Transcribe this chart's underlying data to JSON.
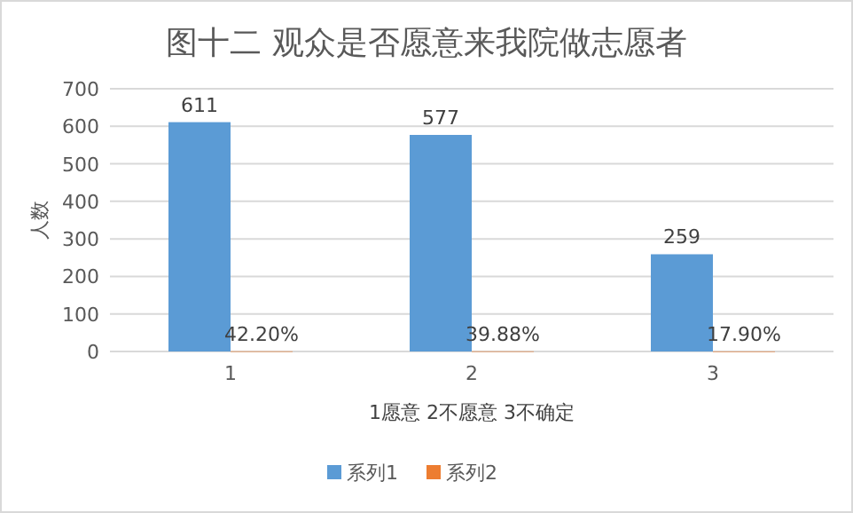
{
  "chart_data": {
    "type": "bar",
    "title": "图十二  观众是否愿意来我院做志愿者",
    "xlabel": "1愿意 2不愿意 3不确定",
    "ylabel": "人数",
    "categories": [
      "1",
      "2",
      "3"
    ],
    "series": [
      {
        "name": "系列1",
        "color": "#5b9bd5",
        "values": [
          611,
          577,
          259
        ],
        "value_labels": [
          "611",
          "577",
          "259"
        ]
      },
      {
        "name": "系列2",
        "color": "#ed7d31",
        "values": [
          0.422,
          0.3988,
          0.179
        ],
        "value_labels": [
          "42.20%",
          "39.88%",
          "17.90%"
        ]
      }
    ],
    "ylim": [
      0,
      700
    ],
    "yticks": [
      0,
      100,
      200,
      300,
      400,
      500,
      600,
      700
    ],
    "grid": "y",
    "legend": "bottom"
  }
}
